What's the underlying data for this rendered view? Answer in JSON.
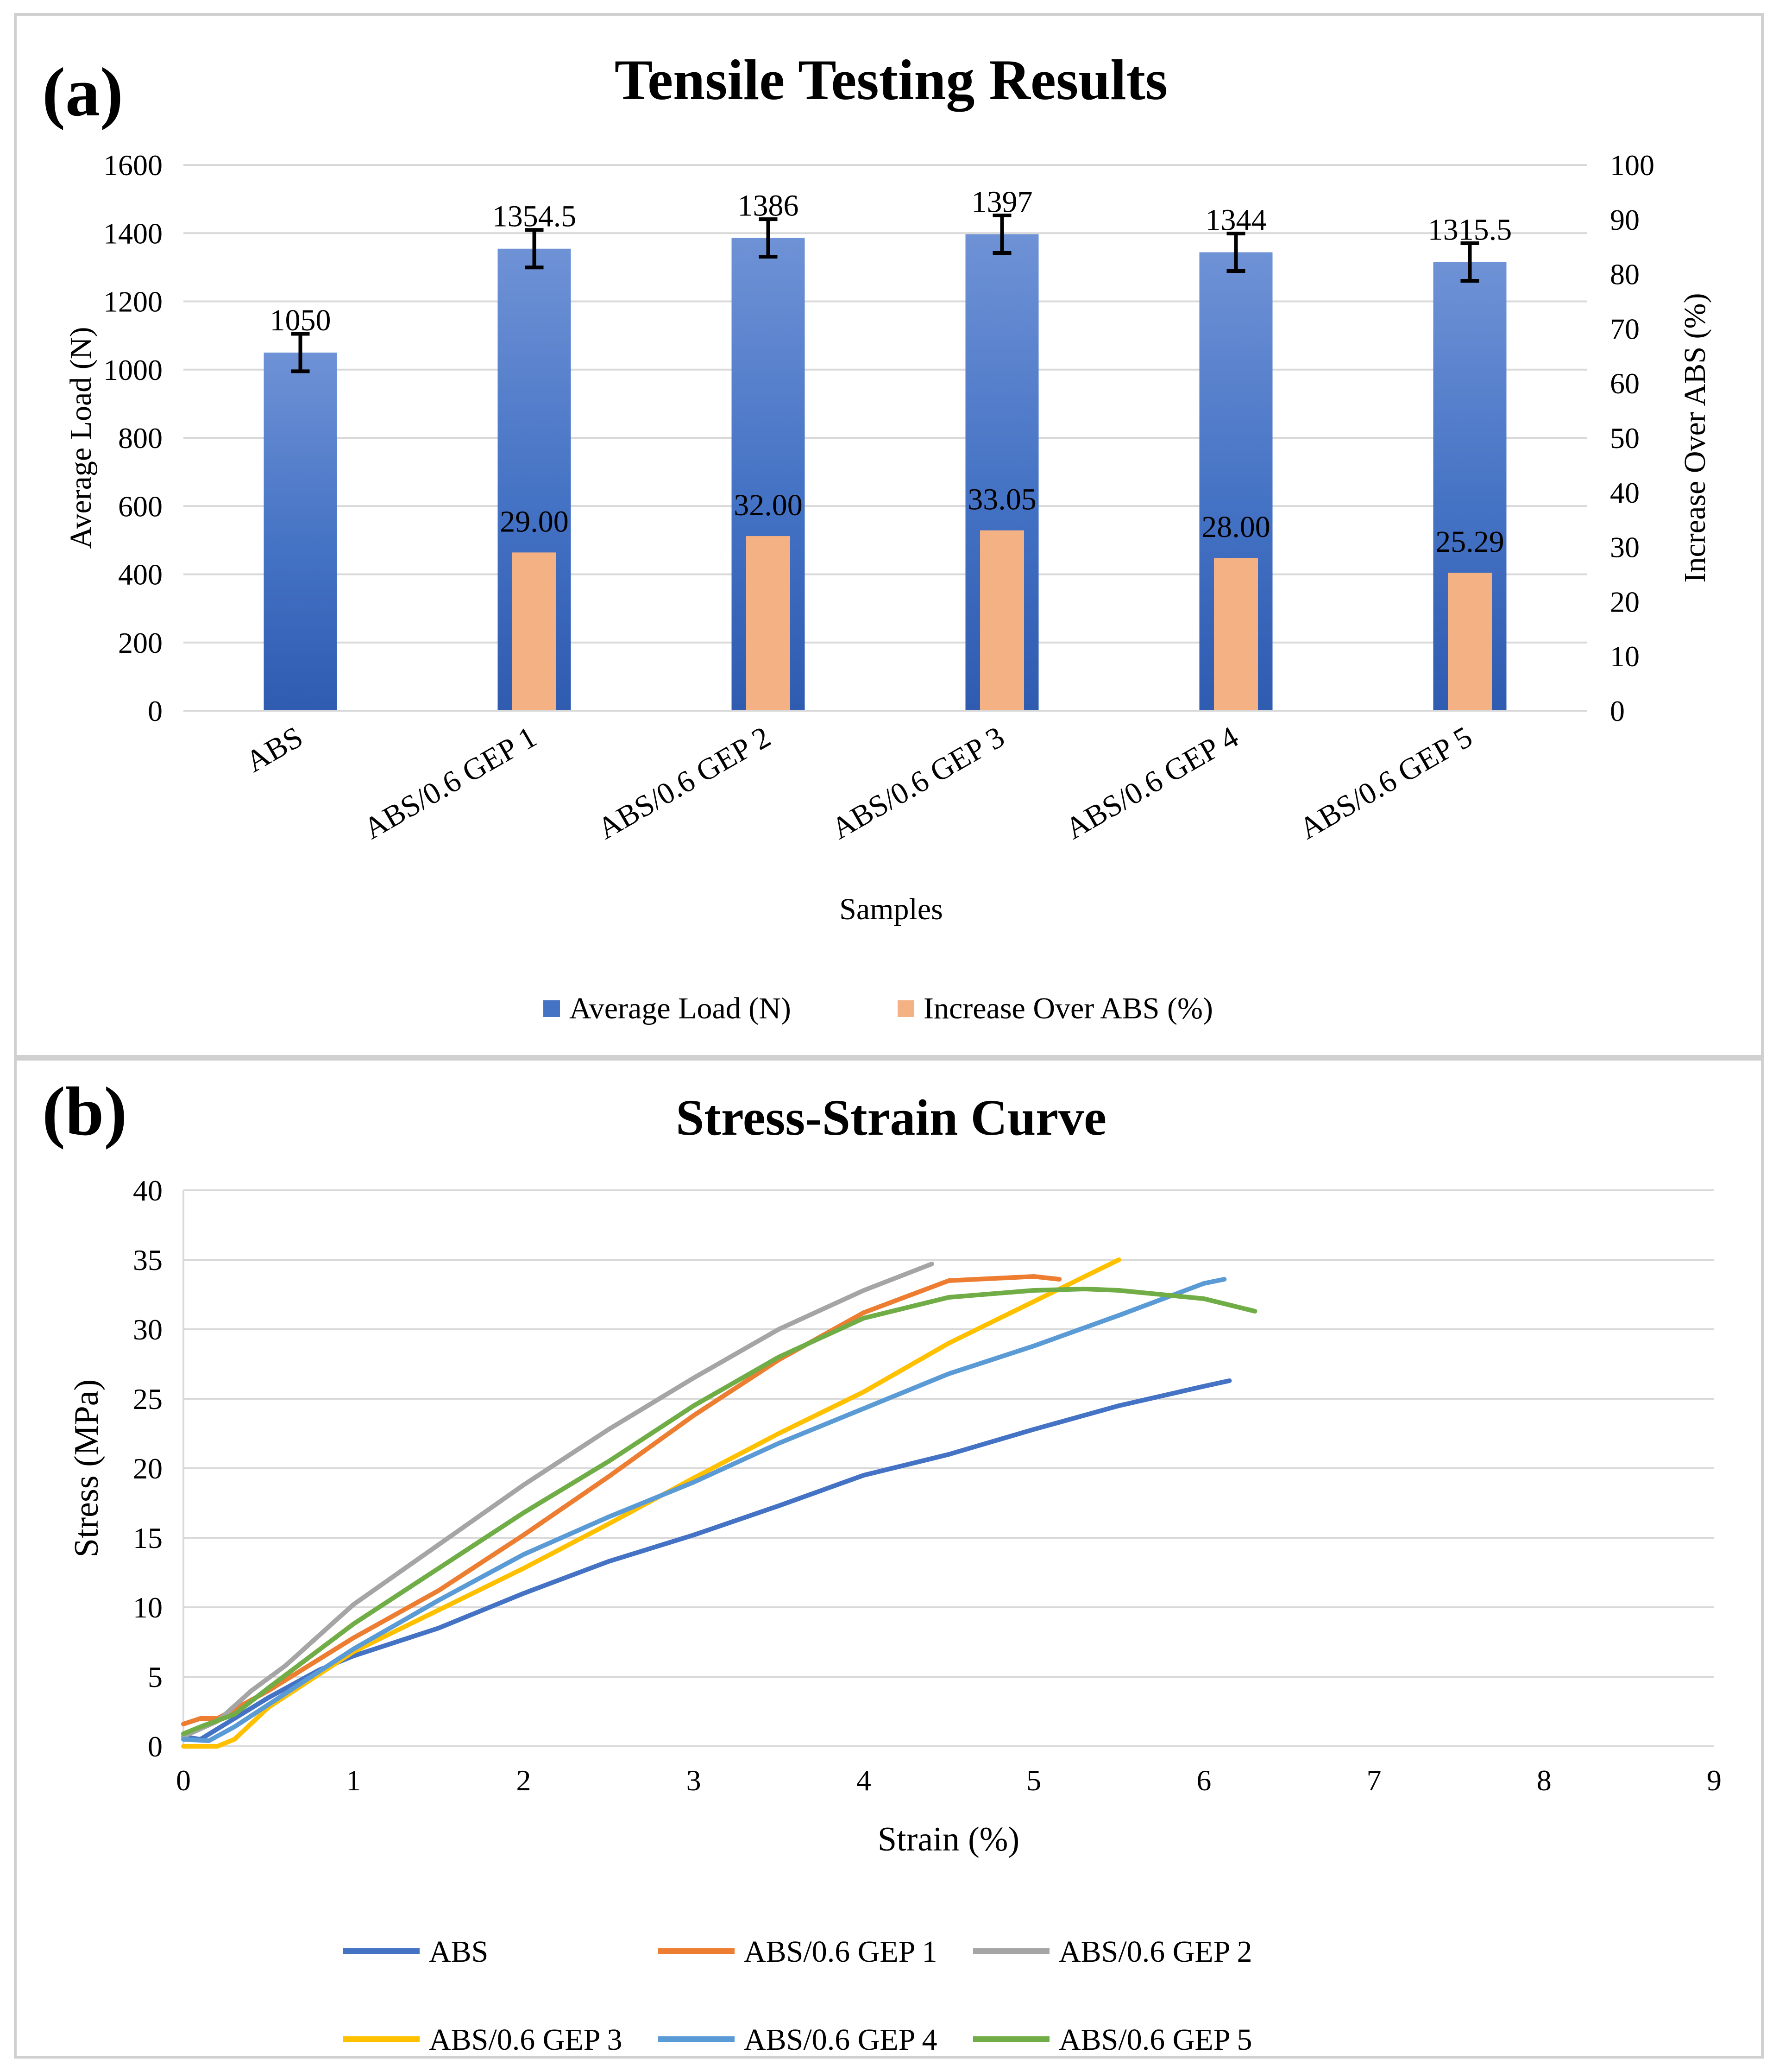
{
  "panel_a": {
    "label": "(a)",
    "chart_data": {
      "type": "bar",
      "title": "Tensile Testing Results",
      "xlabel": "Samples",
      "ylabel": "Average Load (N)",
      "y2label": "Increase Over ABS (%)",
      "ylim": [
        0,
        1600
      ],
      "y2lim": [
        0,
        100
      ],
      "yticks": [
        "0",
        "200",
        "400",
        "600",
        "800",
        "1000",
        "1200",
        "1400",
        "1600"
      ],
      "y2ticks": [
        "0",
        "10",
        "20",
        "30",
        "40",
        "50",
        "60",
        "70",
        "80",
        "90",
        "100"
      ],
      "grid": true,
      "legend_position": "bottom",
      "categories": [
        "ABS",
        "ABS/0.6 GEP 1",
        "ABS/0.6 GEP 2",
        "ABS/0.6 GEP 3",
        "ABS/0.6 GEP 4",
        "ABS/0.6 GEP 5"
      ],
      "series": [
        {
          "name": "Average Load (N)",
          "axis": "left",
          "color": "#4472C4",
          "values": [
            1050,
            1354.5,
            1386,
            1397,
            1344,
            1315.5
          ],
          "labels": [
            "1050",
            "1354.5",
            "1386",
            "1397",
            "1344",
            "1315.5"
          ],
          "error": [
            55,
            55,
            55,
            55,
            55,
            55
          ]
        },
        {
          "name": "Increase Over ABS (%)",
          "axis": "right",
          "color": "#F4B183",
          "values": [
            null,
            29.0,
            32.0,
            33.05,
            28.0,
            25.29
          ],
          "labels": [
            "",
            "29.00",
            "32.00",
            "33.05",
            "28.00",
            "25.29"
          ]
        }
      ]
    }
  },
  "panel_b": {
    "label": "(b)",
    "chart_data": {
      "type": "line",
      "title": "Stress-Strain Curve",
      "xlabel": "Strain (%)",
      "ylabel": "Stress (MPa)",
      "xlim": [
        0,
        9
      ],
      "ylim": [
        0,
        40
      ],
      "xticks": [
        "0",
        "1",
        "2",
        "3",
        "4",
        "5",
        "6",
        "7",
        "8",
        "9"
      ],
      "yticks": [
        "0",
        "5",
        "10",
        "15",
        "20",
        "25",
        "30",
        "35",
        "40"
      ],
      "grid": true,
      "legend_position": "bottom",
      "series": [
        {
          "name": "ABS",
          "color": "#4472C4",
          "x": [
            0.0,
            0.1,
            0.3,
            0.5,
            0.8,
            1.0,
            1.5,
            2.0,
            2.5,
            3.0,
            3.5,
            4.0,
            4.5,
            5.0,
            5.5,
            6.0,
            6.15
          ],
          "y": [
            0.7,
            0.5,
            2.0,
            3.5,
            5.5,
            6.5,
            8.5,
            11.0,
            13.3,
            15.2,
            17.3,
            19.5,
            21.0,
            22.8,
            24.5,
            25.9,
            26.3
          ]
        },
        {
          "name": "ABS/0.6 GEP 1",
          "color": "#ED7D31",
          "x": [
            0.0,
            0.1,
            0.2,
            0.5,
            1.0,
            1.5,
            2.0,
            2.5,
            3.0,
            3.5,
            4.0,
            4.5,
            5.0,
            5.15
          ],
          "y": [
            1.6,
            2.0,
            2.0,
            4.0,
            7.8,
            11.2,
            15.2,
            19.4,
            23.8,
            27.8,
            31.2,
            33.5,
            33.8,
            33.6
          ]
        },
        {
          "name": "ABS/0.6 GEP 2",
          "color": "#A5A5A5",
          "x": [
            0.0,
            0.2,
            0.4,
            0.6,
            0.8,
            1.0,
            1.5,
            2.0,
            2.5,
            3.0,
            3.5,
            4.0,
            4.4
          ],
          "y": [
            0.7,
            1.8,
            4.0,
            5.8,
            8.0,
            10.2,
            14.5,
            18.8,
            22.8,
            26.5,
            30.0,
            32.8,
            34.7
          ]
        },
        {
          "name": "ABS/0.6 GEP 3",
          "color": "#FFC000",
          "x": [
            0.0,
            0.2,
            0.3,
            0.5,
            1.0,
            1.5,
            2.0,
            2.5,
            3.0,
            3.5,
            4.0,
            4.5,
            5.0,
            5.5
          ],
          "y": [
            0.0,
            0.0,
            0.5,
            2.8,
            6.8,
            9.8,
            12.8,
            16.0,
            19.3,
            22.5,
            25.5,
            29.0,
            32.0,
            35.0
          ]
        },
        {
          "name": "ABS/0.6 GEP 4",
          "color": "#5B9BD5",
          "x": [
            0.0,
            0.15,
            0.3,
            0.5,
            1.0,
            1.5,
            2.0,
            2.5,
            3.0,
            3.5,
            4.0,
            4.5,
            5.0,
            5.5,
            6.0,
            6.12
          ],
          "y": [
            0.5,
            0.4,
            1.4,
            3.0,
            7.0,
            10.5,
            13.8,
            16.5,
            19.0,
            21.8,
            24.3,
            26.8,
            28.8,
            31.0,
            33.3,
            33.6
          ]
        },
        {
          "name": "ABS/0.6 GEP 5",
          "color": "#70AD47",
          "x": [
            0.0,
            0.1,
            0.3,
            0.5,
            1.0,
            1.5,
            2.0,
            2.5,
            3.0,
            3.5,
            4.0,
            4.5,
            5.0,
            5.3,
            5.5,
            6.0,
            6.3
          ],
          "y": [
            0.9,
            1.4,
            2.3,
            4.2,
            8.8,
            12.8,
            16.8,
            20.5,
            24.5,
            28.0,
            30.8,
            32.3,
            32.8,
            32.9,
            32.8,
            32.2,
            31.3
          ]
        }
      ]
    }
  }
}
